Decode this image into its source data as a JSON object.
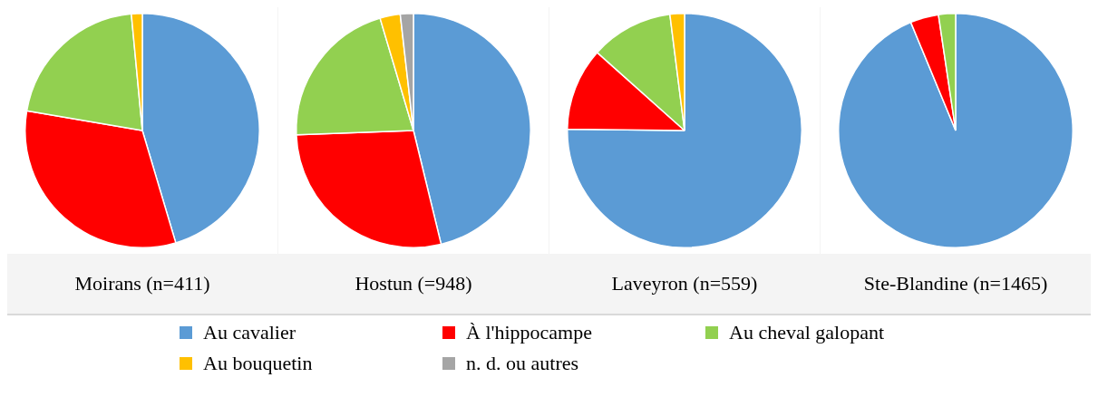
{
  "chart_data": [
    {
      "type": "pie",
      "title": "Moirans (n=411)",
      "categories": [
        null,
        null,
        null,
        null
      ],
      "values": [
        45.4,
        32.3,
        20.8,
        1.5
      ],
      "colors": [
        "#5b9bd5",
        "#ff0000",
        "#92d050",
        "#ffc000"
      ]
    },
    {
      "type": "pie",
      "title": "Hostun (=948)",
      "categories": [
        "Au cavalier",
        "À l'hippocampe",
        "Au cheval galopant",
        "Au bouquetin",
        "n. d. ou autres"
      ],
      "values": [
        46.2,
        28.2,
        21.0,
        2.8,
        1.8
      ],
      "colors": [
        "#5b9bd5",
        "#ff0000",
        "#92d050",
        "#ffc000",
        "#a5a5a5"
      ],
      "legend": "bottom"
    },
    {
      "type": "pie",
      "title": "Laveyron (n=559)",
      "categories": [
        null,
        null,
        null,
        null
      ],
      "values": [
        75.2,
        11.4,
        11.4,
        2.0
      ],
      "colors": [
        "#5b9bd5",
        "#ff0000",
        "#92d050",
        "#ffc000"
      ]
    },
    {
      "type": "pie",
      "title": "Ste-Blandine (n=1465)",
      "categories": [
        null,
        null,
        null
      ],
      "values": [
        93.75,
        3.9,
        2.35
      ],
      "colors": [
        "#5b9bd5",
        "#ff0000",
        "#92d050"
      ]
    }
  ]
}
